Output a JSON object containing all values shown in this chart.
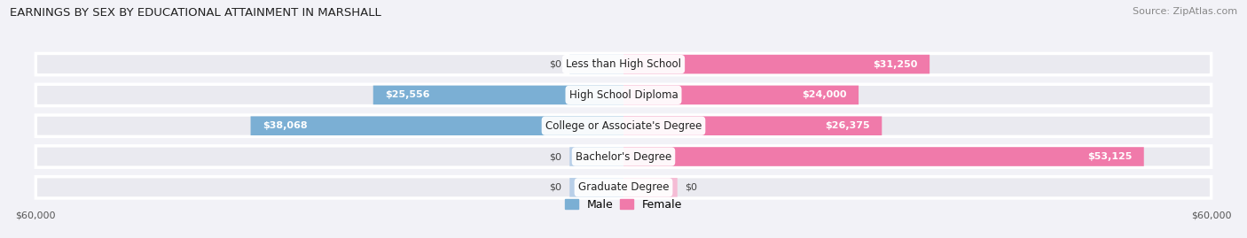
{
  "title": "EARNINGS BY SEX BY EDUCATIONAL ATTAINMENT IN MARSHALL",
  "source": "Source: ZipAtlas.com",
  "categories": [
    "Less than High School",
    "High School Diploma",
    "College or Associate's Degree",
    "Bachelor's Degree",
    "Graduate Degree"
  ],
  "male_values": [
    0,
    25556,
    38068,
    0,
    0
  ],
  "female_values": [
    31250,
    24000,
    26375,
    53125,
    0
  ],
  "male_color": "#7bafd4",
  "female_color": "#f07aaa",
  "male_placeholder_color": "#b8cfe8",
  "female_placeholder_color": "#f5bcd5",
  "axis_max": 60000,
  "bg_color": "#f2f2f7",
  "row_bg_color": "#eaeaf0",
  "row_bg_edge": "#ffffff",
  "title_fontsize": 9.5,
  "source_fontsize": 8,
  "label_fontsize": 8.5,
  "value_fontsize": 8,
  "tick_fontsize": 8,
  "legend_fontsize": 9
}
